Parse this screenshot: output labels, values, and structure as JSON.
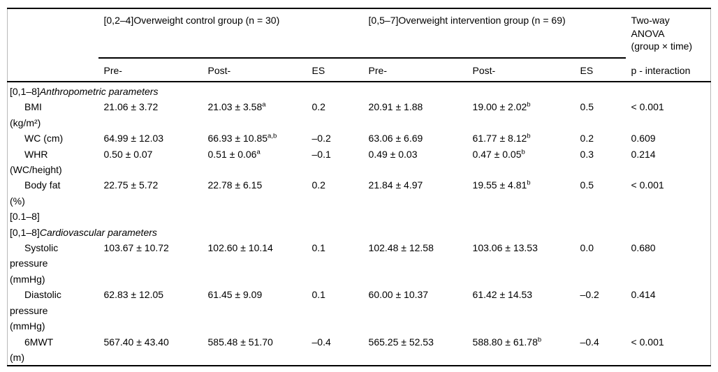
{
  "header": {
    "control_group": "[0,2–4]Overweight control group (n = 30)",
    "intervention_group": "[0,5–7]Overweight intervention group (n = 69)",
    "anova": "Two-way\nANOVA\n(group × time)",
    "sub": [
      "Pre-",
      "Post-",
      "ES",
      "Pre-",
      "Post-",
      "ES"
    ],
    "p_label": "p - interaction"
  },
  "body": {
    "rows": [
      {
        "type": "section",
        "prefix": "[0,1–8]",
        "title": "Anthropometric parameters"
      },
      {
        "type": "data",
        "label": "BMI\n(kg/m²)",
        "cells": [
          {
            "v": "21.06 ± 3.72"
          },
          {
            "v": "21.03 ± 3.58",
            "s": "a"
          },
          {
            "v": "0.2"
          },
          {
            "v": "20.91 ± 1.88"
          },
          {
            "v": "19.00 ± 2.02",
            "s": "b"
          },
          {
            "v": "0.5"
          },
          {
            "v": "< 0.001"
          }
        ]
      },
      {
        "type": "data",
        "label": "WC (cm)",
        "cells": [
          {
            "v": "64.99 ± 12.03"
          },
          {
            "v": "66.93 ± 10.85",
            "s": "a,b"
          },
          {
            "v": "–0.2"
          },
          {
            "v": "63.06 ± 6.69"
          },
          {
            "v": "61.77 ± 8.12",
            "s": "b"
          },
          {
            "v": "0.2"
          },
          {
            "v": "0.609"
          }
        ]
      },
      {
        "type": "data",
        "label": "WHR\n(WC/height)",
        "cells": [
          {
            "v": "0.50 ± 0.07"
          },
          {
            "v": "0.51 ± 0.06",
            "s": "a"
          },
          {
            "v": "–0.1"
          },
          {
            "v": "0.49 ± 0.03"
          },
          {
            "v": "0.47 ± 0.05",
            "s": "b"
          },
          {
            "v": "0.3"
          },
          {
            "v": "0.214"
          }
        ]
      },
      {
        "type": "data",
        "label": "Body fat\n(%)",
        "cells": [
          {
            "v": "22.75 ± 5.72"
          },
          {
            "v": "22.78 ± 6.15"
          },
          {
            "v": "0.2"
          },
          {
            "v": "21.84 ± 4.97"
          },
          {
            "v": "19.55 ± 4.81",
            "s": "b"
          },
          {
            "v": "0.5"
          },
          {
            "v": "< 0.001"
          }
        ]
      },
      {
        "type": "section",
        "prefix": "[0.1–8]",
        "title": ""
      },
      {
        "type": "section",
        "prefix": "[0,1–8]",
        "title": "Cardiovascular parameters"
      },
      {
        "type": "data",
        "label": "Systolic\npressure\n(mmHg)",
        "cells": [
          {
            "v": "103.67 ± 10.72"
          },
          {
            "v": "102.60 ± 10.14"
          },
          {
            "v": "0.1"
          },
          {
            "v": "102.48 ± 12.58"
          },
          {
            "v": "103.06 ± 13.53"
          },
          {
            "v": "0.0"
          },
          {
            "v": "0.680"
          }
        ]
      },
      {
        "type": "data",
        "label": "Diastolic\npressure\n(mmHg)",
        "cells": [
          {
            "v": "62.83 ± 12.05"
          },
          {
            "v": "61.45 ± 9.09"
          },
          {
            "v": "0.1"
          },
          {
            "v": "60.00 ± 10.37"
          },
          {
            "v": "61.42 ± 14.53"
          },
          {
            "v": "–0.2"
          },
          {
            "v": "0.414"
          }
        ]
      },
      {
        "type": "data",
        "label": "6MWT\n(m)",
        "cells": [
          {
            "v": "567.40 ± 43.40"
          },
          {
            "v": "585.48 ± 51.70"
          },
          {
            "v": "–0.4"
          },
          {
            "v": "565.25 ± 52.53"
          },
          {
            "v": "588.80 ± 61.78",
            "s": "b"
          },
          {
            "v": "–0.4"
          },
          {
            "v": "< 0.001"
          }
        ]
      }
    ]
  }
}
